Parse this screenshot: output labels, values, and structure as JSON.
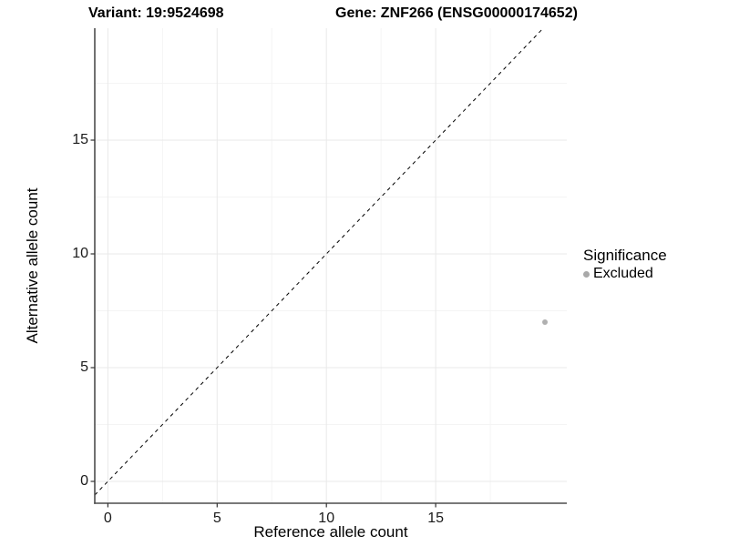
{
  "header": {
    "variant_title": "Variant: 19:9524698",
    "gene_title": "Gene: ZNF266 (ENSG00000174652)"
  },
  "legend": {
    "title": "Significance",
    "items": [
      {
        "label": "Excluded",
        "color": "#a9a9a9"
      }
    ]
  },
  "chart_data": {
    "type": "scatter",
    "xlabel": "Reference allele count",
    "ylabel": "Alternative allele count",
    "x_ticks": [
      0,
      5,
      10,
      15
    ],
    "y_ticks": [
      0,
      5,
      10,
      15
    ],
    "x_minor_ticks": [
      2.5,
      7.5,
      12.5,
      17.5
    ],
    "y_minor_ticks": [
      2.5,
      7.5,
      12.5,
      17.5
    ],
    "xlim": [
      -0.6,
      21.0
    ],
    "ylim": [
      -0.96,
      19.92
    ],
    "grid": true,
    "legend_position": "right",
    "points": [
      {
        "x": 20,
        "y": 7,
        "significance": "Excluded"
      }
    ],
    "reference_line": {
      "type": "identity",
      "slope": 1,
      "intercept": 0,
      "style": "dashed"
    },
    "colors": {
      "point": "#b0b0b0",
      "dashed_line": "#000000",
      "axis_line": "#4d4d4d",
      "tick_mark": "#333333",
      "grid_major": "#e9e9e9",
      "grid_minor": "#f4f4f4",
      "panel_background": "#ffffff"
    }
  }
}
